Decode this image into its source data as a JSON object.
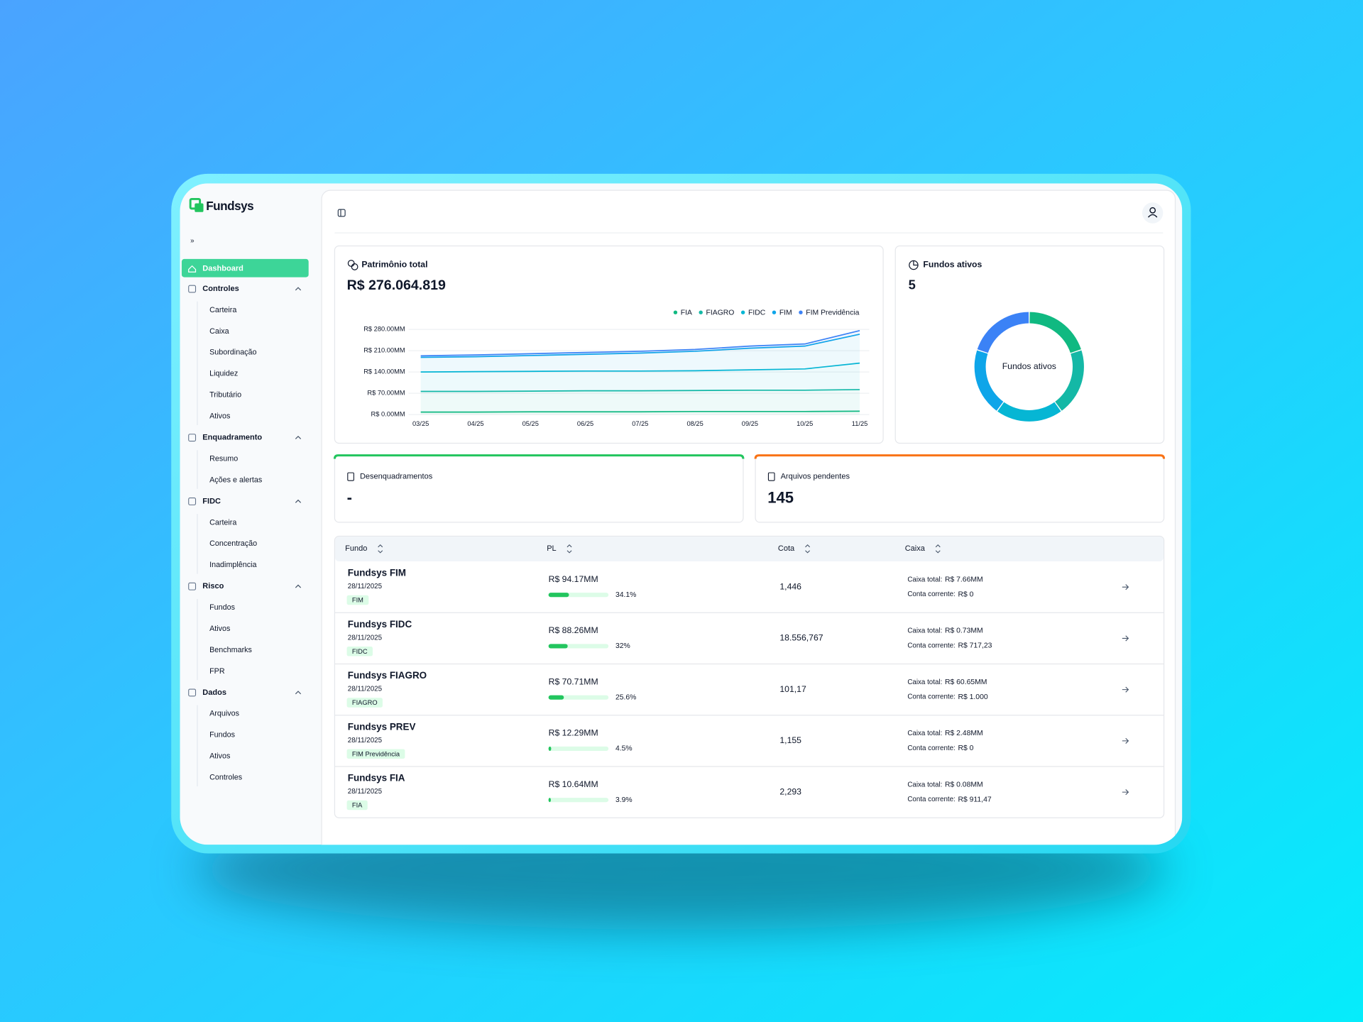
{
  "brand": "Fundsys",
  "sidebar": {
    "active": "Dashboard",
    "groups": [
      {
        "title": "Controles",
        "items": [
          "Carteira",
          "Caixa",
          "Subordinação",
          "Liquidez",
          "Tributário",
          "Ativos"
        ]
      },
      {
        "title": "Enquadramento",
        "items": [
          "Resumo",
          "Ações e alertas"
        ]
      },
      {
        "title": "FIDC",
        "items": [
          "Carteira",
          "Concentração",
          "Inadimplência"
        ]
      },
      {
        "title": "Risco",
        "items": [
          "Fundos",
          "Ativos",
          "Benchmarks",
          "FPR"
        ]
      },
      {
        "title": "Dados",
        "items": [
          "Arquivos",
          "Fundos",
          "Ativos",
          "Controles"
        ]
      }
    ]
  },
  "chart_data": [
    {
      "type": "line",
      "title": "Patrimônio total",
      "headline": "R$ 276.064.819",
      "stacked": true,
      "area": true,
      "categories": [
        "03/25",
        "04/25",
        "05/25",
        "06/25",
        "07/25",
        "08/25",
        "09/25",
        "10/25",
        "11/25"
      ],
      "series": [
        {
          "name": "FIA",
          "color": "#10b981",
          "values": [
            8,
            8,
            9,
            9,
            9,
            10,
            10,
            10,
            11
          ]
        },
        {
          "name": "FIAGRO",
          "color": "#14b8a6",
          "values": [
            68,
            68,
            68,
            69,
            69,
            69,
            70,
            70,
            71
          ]
        },
        {
          "name": "FIDC",
          "color": "#06b6d4",
          "values": [
            64,
            65,
            65,
            65,
            65,
            65,
            67,
            70,
            87
          ]
        },
        {
          "name": "FIM",
          "color": "#0ea5e9",
          "values": [
            48,
            49,
            52,
            55,
            59,
            64,
            71,
            75,
            95
          ]
        },
        {
          "name": "FIM Previdência",
          "color": "#3b82f6",
          "values": [
            5,
            6,
            6,
            6,
            6,
            6,
            7,
            7,
            12
          ]
        }
      ],
      "ylim": [
        0,
        280
      ],
      "yticks": [
        {
          "value": 0,
          "label": "R$ 0.00MM"
        },
        {
          "value": 70,
          "label": "R$ 70.00MM"
        },
        {
          "value": 140,
          "label": "R$ 140.00MM"
        },
        {
          "value": 210,
          "label": "R$ 210.00MM"
        },
        {
          "value": 280,
          "label": "R$ 280.00MM"
        }
      ],
      "grid": true
    },
    {
      "type": "pie",
      "title": "Fundos ativos",
      "total": 5,
      "center_label": "Fundos ativos",
      "donut": true,
      "values": [
        1,
        1,
        1,
        1,
        1
      ],
      "colors": [
        "#10b981",
        "#14b8a6",
        "#06b6d4",
        "#0ea5e9",
        "#3b82f6"
      ]
    }
  ],
  "cards": [
    {
      "title": "Desenquadramentos",
      "value": "-",
      "color": "#22c55e"
    },
    {
      "title": "Arquivos pendentes",
      "value": 145,
      "color": "#f97316"
    }
  ],
  "table": {
    "columns": [
      "Fundo",
      "PL",
      "Cota",
      "Caixa"
    ],
    "labels": {
      "caixa": "Caixa total:",
      "conta": "Conta corrente:"
    },
    "rows": [
      {
        "name": "Fundsys FIM",
        "date": "28/11/2025",
        "tag": "FIM",
        "pl": "R$ 94.17MM",
        "pct": 34.1,
        "pct_label": "34.1%",
        "cota": "1,446",
        "caixa": "R$ 7.66MM",
        "conta": "R$ 0"
      },
      {
        "name": "Fundsys FIDC",
        "date": "28/11/2025",
        "tag": "FIDC",
        "pl": "R$ 88.26MM",
        "pct": 32,
        "pct_label": "32%",
        "cota": "18.556,767",
        "caixa": "R$ 0.73MM",
        "conta": "R$ 717,23"
      },
      {
        "name": "Fundsys FIAGRO",
        "date": "28/11/2025",
        "tag": "FIAGRO",
        "pl": "R$ 70.71MM",
        "pct": 25.6,
        "pct_label": "25.6%",
        "cota": "101,17",
        "caixa": "R$ 60.65MM",
        "conta": "R$ 1.000"
      },
      {
        "name": "Fundsys PREV",
        "date": "28/11/2025",
        "tag": "FIM Previdência",
        "pl": "R$ 12.29MM",
        "pct": 4.5,
        "pct_label": "4.5%",
        "cota": "1,155",
        "caixa": "R$ 2.48MM",
        "conta": "R$ 0"
      },
      {
        "name": "Fundsys FIA",
        "date": "28/11/2025",
        "tag": "FIA",
        "pl": "R$ 10.64MM",
        "pct": 3.9,
        "pct_label": "3.9%",
        "cota": "2,293",
        "caixa": "R$ 0.08MM",
        "conta": "R$ 911,47"
      }
    ]
  }
}
